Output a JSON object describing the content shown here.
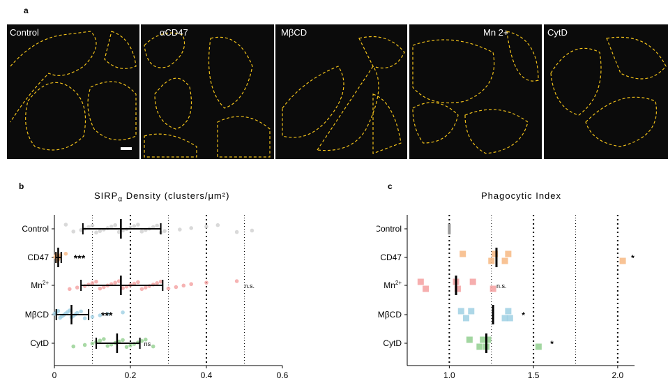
{
  "panels": {
    "a": "a",
    "b": "b",
    "c": "c"
  },
  "micrographs": [
    {
      "label": "Control"
    },
    {
      "label": "αCD47"
    },
    {
      "label": "MβCD"
    },
    {
      "label": "Mn 2+"
    },
    {
      "label": "CytD"
    }
  ],
  "colors": {
    "control": "#cfcfcf",
    "cd47": "#f7b883",
    "mn": "#f4a0a0",
    "mbcd": "#9fd0e3",
    "cytd": "#92cf8f",
    "outline": "#f2c21a"
  },
  "chart_data": [
    {
      "type": "scatter",
      "title": "SIRPα Density (clusters/μm²)",
      "title_main": "SIRP",
      "title_sub": "α",
      "title_rest": "Density (clusters/μm²)",
      "categories": [
        "Control",
        "CD47",
        "Mn2+",
        "MβCD",
        "CytD"
      ],
      "category_labels": [
        "Control",
        "CD47",
        "Mn",
        "MβCD",
        "CytD"
      ],
      "category_superscripts": [
        "",
        "",
        "2+",
        "",
        ""
      ],
      "xlim": [
        0,
        0.6
      ],
      "xticks": [
        "0",
        "0.2",
        "0.4",
        "0.6"
      ],
      "xtick_values": [
        0,
        0.2,
        0.4,
        0.6
      ],
      "reference_lines": [
        0.1,
        0.2,
        0.3,
        0.4,
        0.5
      ],
      "series": [
        {
          "category": "Control",
          "mean": 0.175,
          "error_low": 0.075,
          "error_high": 0.28,
          "annotation": ""
        },
        {
          "category": "CD47",
          "mean": 0.01,
          "error_low": 0.004,
          "error_high": 0.018,
          "annotation": "***"
        },
        {
          "category": "Mn2+",
          "mean": 0.175,
          "error_low": 0.07,
          "error_high": 0.285,
          "annotation": "n.s."
        },
        {
          "category": "MβCD",
          "mean": 0.045,
          "error_low": 0.005,
          "error_high": 0.09,
          "annotation": "***"
        },
        {
          "category": "CytD",
          "mean": 0.165,
          "error_low": 0.11,
          "error_high": 0.225,
          "annotation": "ns"
        }
      ],
      "points": {
        "Control": [
          0.03,
          0.05,
          0.07,
          0.08,
          0.09,
          0.1,
          0.11,
          0.12,
          0.13,
          0.14,
          0.15,
          0.16,
          0.17,
          0.18,
          0.19,
          0.2,
          0.21,
          0.22,
          0.23,
          0.24,
          0.25,
          0.26,
          0.27,
          0.28,
          0.29,
          0.33,
          0.36,
          0.4,
          0.43,
          0.48,
          0.52
        ],
        "CD47": [
          0.002,
          0.004,
          0.006,
          0.008,
          0.01,
          0.012,
          0.014,
          0.016,
          0.03
        ],
        "Mn2+": [
          0.04,
          0.06,
          0.08,
          0.09,
          0.1,
          0.11,
          0.12,
          0.13,
          0.14,
          0.15,
          0.16,
          0.17,
          0.18,
          0.19,
          0.2,
          0.21,
          0.22,
          0.23,
          0.24,
          0.25,
          0.26,
          0.27,
          0.28,
          0.3,
          0.32,
          0.34,
          0.36,
          0.4,
          0.48
        ],
        "MβCD": [
          0.0,
          0.005,
          0.01,
          0.015,
          0.02,
          0.025,
          0.03,
          0.035,
          0.04,
          0.045,
          0.05,
          0.055,
          0.06,
          0.07,
          0.08,
          0.1,
          0.12,
          0.14,
          0.18
        ],
        "CytD": [
          0.05,
          0.08,
          0.1,
          0.11,
          0.12,
          0.13,
          0.14,
          0.15,
          0.16,
          0.17,
          0.18,
          0.19,
          0.2,
          0.21,
          0.22,
          0.23,
          0.24,
          0.26
        ]
      }
    },
    {
      "type": "scatter",
      "title": "Phagocytic Index",
      "categories": [
        "Control",
        "CD47",
        "Mn2+",
        "MβCD",
        "CytD"
      ],
      "category_labels": [
        "Control",
        "CD47",
        "Mn",
        "MβCD",
        "CytD"
      ],
      "category_superscripts": [
        "",
        "",
        "2+",
        "",
        ""
      ],
      "xlim": [
        0.75,
        2.1
      ],
      "xticks": [
        "1.0",
        "1.5",
        "2.0"
      ],
      "xtick_values": [
        1.0,
        1.5,
        2.0
      ],
      "reference_lines": [
        1.0,
        1.25,
        1.5,
        1.75,
        2.0
      ],
      "series": [
        {
          "category": "Control",
          "mean": 1.0,
          "annotation": ""
        },
        {
          "category": "CD47",
          "mean": 1.28,
          "annotation": "*"
        },
        {
          "category": "Mn2+",
          "mean": 1.04,
          "annotation": "n.s."
        },
        {
          "category": "MβCD",
          "mean": 1.26,
          "annotation": "*"
        },
        {
          "category": "CytD",
          "mean": 1.22,
          "annotation": "*"
        }
      ],
      "points": {
        "Control": [
          1.0,
          1.0,
          1.0,
          1.0,
          1.0
        ],
        "CD47": [
          1.08,
          1.25,
          1.27,
          1.33,
          1.35,
          2.03
        ],
        "Mn2+": [
          0.83,
          0.86,
          1.04,
          1.05,
          1.14,
          1.26
        ],
        "MβCD": [
          1.07,
          1.1,
          1.13,
          1.33,
          1.35,
          1.36
        ],
        "CytD": [
          1.12,
          1.18,
          1.2,
          1.22,
          1.23,
          1.53
        ]
      }
    }
  ]
}
